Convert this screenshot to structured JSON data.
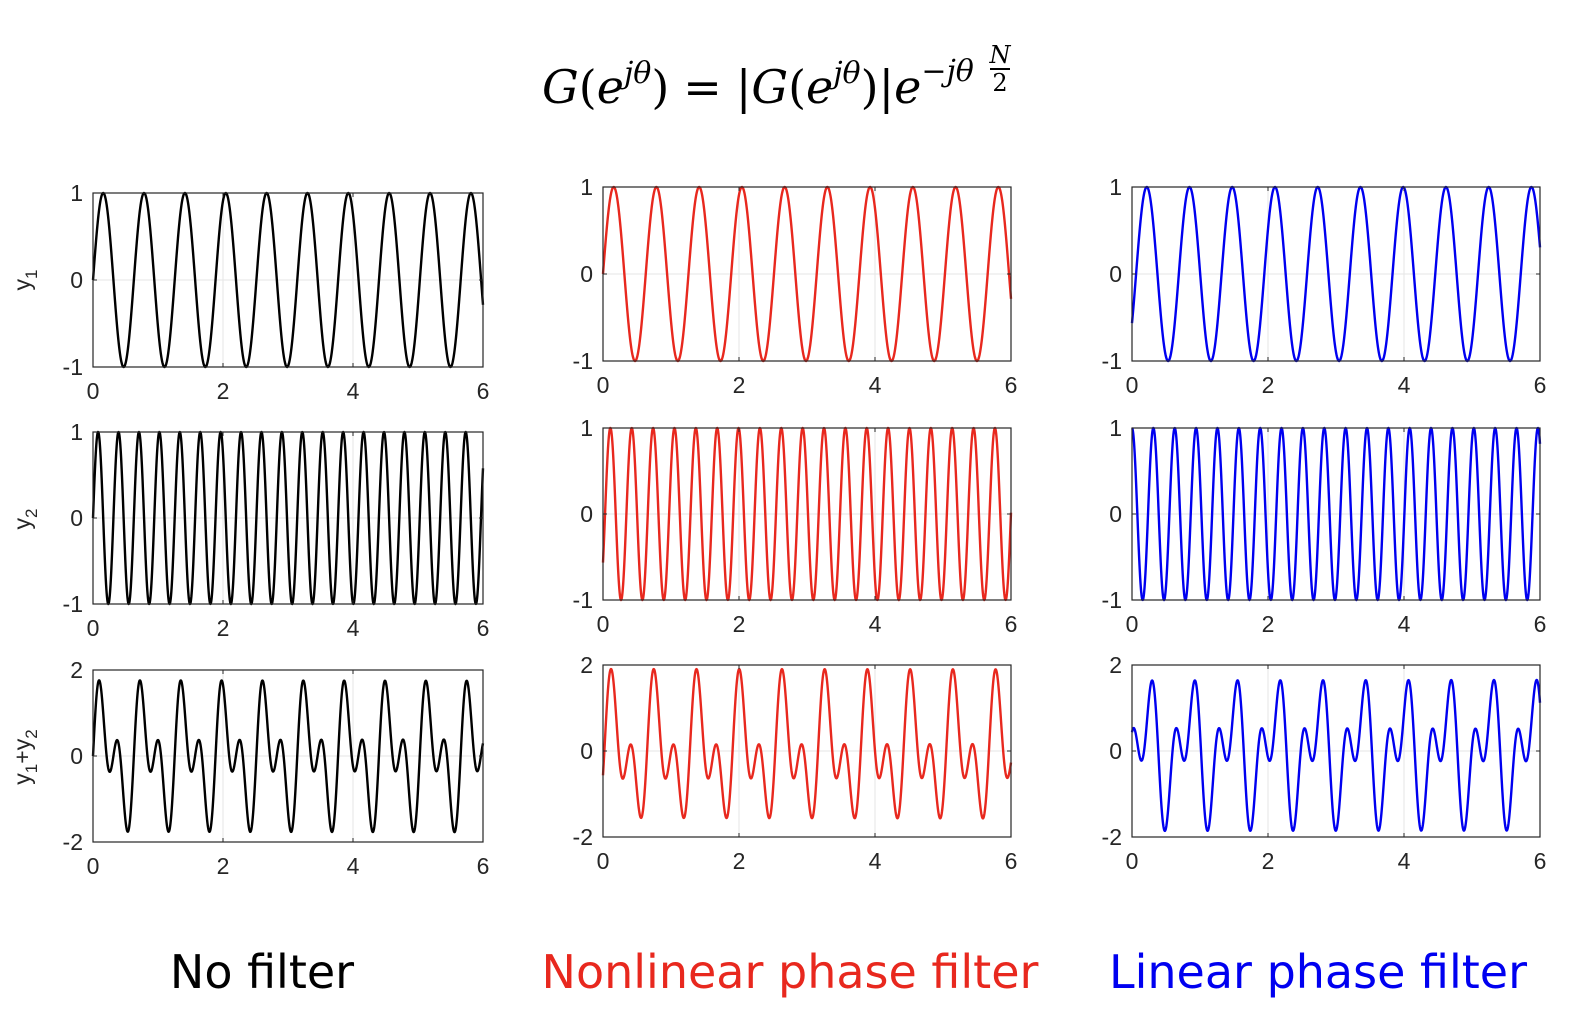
{
  "equation": {
    "G": "G",
    "lparen": "(",
    "e": "e",
    "j_theta": "jθ",
    "rparen": ")",
    "equals": "=",
    "bar": "|",
    "minus_j_theta": "−jθ",
    "N": "N",
    "two": "2"
  },
  "columns": [
    {
      "caption": "No filter",
      "color": "#000000"
    },
    {
      "caption": "Nonlinear phase filter",
      "color": "#e8281e"
    },
    {
      "caption": "Linear phase filter",
      "color": "#0000f0"
    }
  ],
  "row_ylabels": [
    "y1",
    "y2",
    "y1+y2"
  ],
  "chart_data": [
    {
      "type": "line",
      "panel": "no-filter-y1",
      "title": "",
      "xlabel": "",
      "ylabel": "y1",
      "xlim": [
        0,
        6
      ],
      "ylim": [
        -1,
        1
      ],
      "xticks": [
        0,
        2,
        4,
        6
      ],
      "yticks": [
        -1,
        0,
        1
      ],
      "grid": true,
      "color": "#000000",
      "series": [
        {
          "components": [
            {
              "amp": 1,
              "freq": 1.591,
              "phase": 0
            }
          ]
        }
      ]
    },
    {
      "type": "line",
      "panel": "nonlinear-y1",
      "title": "",
      "xlabel": "",
      "ylabel": "",
      "xlim": [
        0,
        6
      ],
      "ylim": [
        -1,
        1
      ],
      "xticks": [
        0,
        2,
        4,
        6
      ],
      "yticks": [
        -1,
        0,
        1
      ],
      "grid": true,
      "color": "#e8281e",
      "series": [
        {
          "components": [
            {
              "amp": 1,
              "freq": 1.591,
              "phase": 0
            }
          ]
        }
      ]
    },
    {
      "type": "line",
      "panel": "linear-y1",
      "title": "",
      "xlabel": "",
      "ylabel": "",
      "xlim": [
        0,
        6
      ],
      "ylim": [
        -1,
        1
      ],
      "xticks": [
        0,
        2,
        4,
        6
      ],
      "yticks": [
        -1,
        0,
        1
      ],
      "grid": true,
      "color": "#0000f0",
      "series": [
        {
          "components": [
            {
              "amp": 1,
              "freq": 1.591,
              "phase": -0.6
            }
          ]
        }
      ]
    },
    {
      "type": "line",
      "panel": "no-filter-y2",
      "title": "",
      "xlabel": "",
      "ylabel": "y2",
      "xlim": [
        0,
        6
      ],
      "ylim": [
        -1,
        1
      ],
      "xticks": [
        0,
        2,
        4,
        6
      ],
      "yticks": [
        -1,
        0,
        1
      ],
      "grid": true,
      "color": "#000000",
      "series": [
        {
          "components": [
            {
              "amp": 1,
              "freq": 3.183,
              "phase": 0
            }
          ]
        }
      ]
    },
    {
      "type": "line",
      "panel": "nonlinear-y2",
      "title": "",
      "xlabel": "",
      "ylabel": "",
      "xlim": [
        0,
        6
      ],
      "ylim": [
        -1,
        1
      ],
      "xticks": [
        0,
        2,
        4,
        6
      ],
      "yticks": [
        -1,
        0,
        1
      ],
      "grid": true,
      "color": "#e8281e",
      "series": [
        {
          "components": [
            {
              "amp": 1,
              "freq": 3.183,
              "phase": -0.6
            }
          ]
        }
      ]
    },
    {
      "type": "line",
      "panel": "linear-y2",
      "title": "",
      "xlabel": "",
      "ylabel": "",
      "xlim": [
        0,
        6
      ],
      "ylim": [
        -1,
        1
      ],
      "xticks": [
        0,
        2,
        4,
        6
      ],
      "yticks": [
        -1,
        0,
        1
      ],
      "grid": true,
      "color": "#0000f0",
      "series": [
        {
          "components": [
            {
              "amp": 1,
              "freq": 3.183,
              "phase": 1.5708
            }
          ]
        }
      ]
    },
    {
      "type": "line",
      "panel": "no-filter-sum",
      "title": "",
      "xlabel": "",
      "ylabel": "y1+y2",
      "xlim": [
        0,
        6
      ],
      "ylim": [
        -2,
        2
      ],
      "xticks": [
        0,
        2,
        4,
        6
      ],
      "yticks": [
        -2,
        0,
        2
      ],
      "grid": true,
      "color": "#000000",
      "series": [
        {
          "components": [
            {
              "amp": 1,
              "freq": 1.591,
              "phase": 0
            },
            {
              "amp": 1,
              "freq": 3.183,
              "phase": 0
            }
          ]
        }
      ]
    },
    {
      "type": "line",
      "panel": "nonlinear-sum",
      "title": "",
      "xlabel": "",
      "ylabel": "",
      "xlim": [
        0,
        6
      ],
      "ylim": [
        -2,
        2
      ],
      "xticks": [
        0,
        2,
        4,
        6
      ],
      "yticks": [
        -2,
        0,
        2
      ],
      "grid": true,
      "color": "#e8281e",
      "series": [
        {
          "components": [
            {
              "amp": 1,
              "freq": 1.591,
              "phase": 0
            },
            {
              "amp": 1,
              "freq": 3.183,
              "phase": -0.6
            }
          ]
        }
      ]
    },
    {
      "type": "line",
      "panel": "linear-sum",
      "title": "",
      "xlabel": "",
      "ylabel": "",
      "xlim": [
        0,
        6
      ],
      "ylim": [
        -2,
        2
      ],
      "xticks": [
        0,
        2,
        4,
        6
      ],
      "yticks": [
        -2,
        0,
        2
      ],
      "grid": true,
      "color": "#0000f0",
      "series": [
        {
          "components": [
            {
              "amp": 1,
              "freq": 1.591,
              "phase": -0.6
            },
            {
              "amp": 1,
              "freq": 3.183,
              "phase": 1.5708
            }
          ]
        }
      ]
    }
  ]
}
